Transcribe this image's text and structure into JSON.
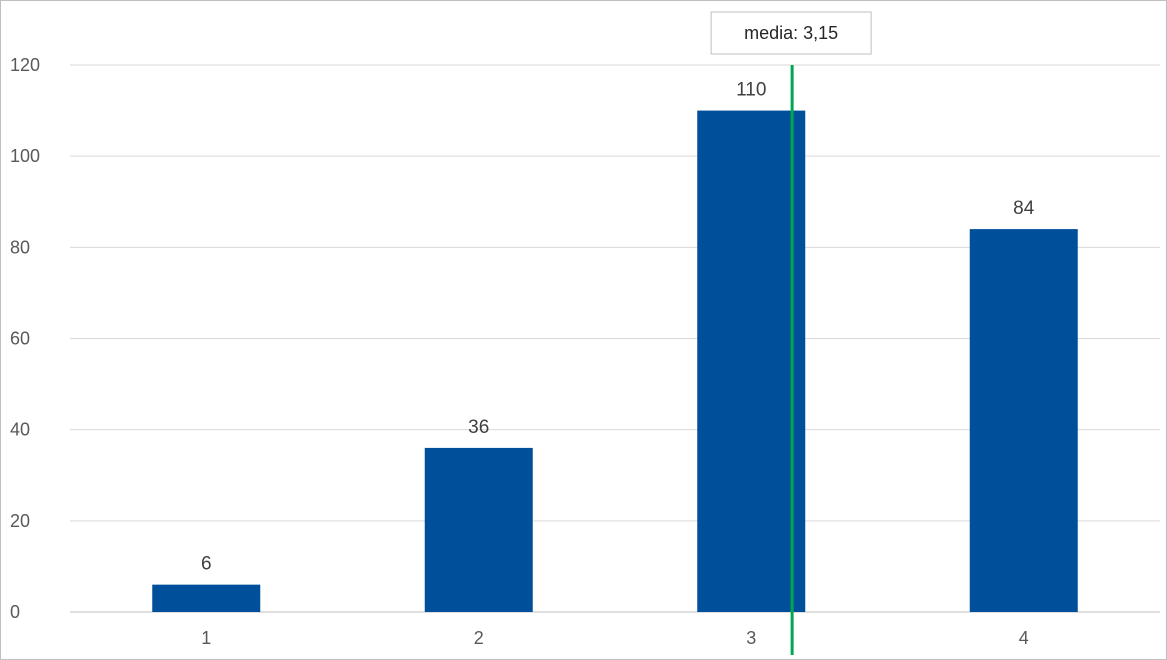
{
  "chart_data": {
    "type": "bar",
    "categories": [
      "1",
      "2",
      "3",
      "4"
    ],
    "values": [
      6,
      36,
      110,
      84
    ],
    "data_labels": [
      "6",
      "36",
      "110",
      "84"
    ],
    "ylim": [
      0,
      120
    ],
    "yticks": [
      0,
      20,
      40,
      60,
      80,
      100,
      120
    ],
    "grid": true,
    "bar_color": "#004f9a",
    "mean_line": {
      "x": 3.15,
      "color": "#00a651",
      "label": "media: 3,15"
    }
  }
}
